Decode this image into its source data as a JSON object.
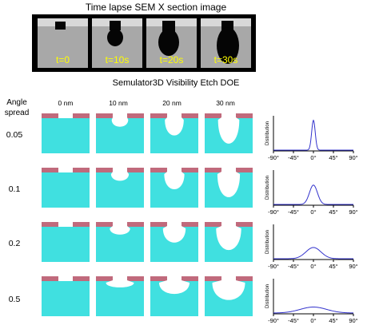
{
  "sem": {
    "title": "Time lapse SEM X section image",
    "panels": [
      {
        "label": "t=0"
      },
      {
        "label": "t=10s"
      },
      {
        "label": "t=20s"
      },
      {
        "label": "t=30s"
      }
    ]
  },
  "sim": {
    "title": "Semulator3D  Visibility Etch DOE",
    "angle_header": [
      "Angle",
      "spread"
    ],
    "columns": [
      "0 nm",
      "10 nm",
      "20 nm",
      "30 nm"
    ],
    "rows": [
      {
        "angle": "0.05",
        "spread": 0.05
      },
      {
        "angle": "0.1",
        "spread": 0.1
      },
      {
        "angle": "0.2",
        "spread": 0.2
      },
      {
        "angle": "0.5",
        "spread": 0.5
      }
    ]
  },
  "distribution": {
    "ylabel": "Distribution",
    "xticks": [
      "-90°",
      "-45°",
      "0°",
      "45°",
      "90°"
    ],
    "xlim": [
      -90,
      90
    ],
    "curves": [
      {
        "sigma_deg": 4,
        "peak": 0.85
      },
      {
        "sigma_deg": 9,
        "peak": 0.55
      },
      {
        "sigma_deg": 17,
        "peak": 0.32
      },
      {
        "sigma_deg": 30,
        "peak": 0.17
      }
    ]
  },
  "colors": {
    "substrate": "#40e0e0",
    "mask": "#c06a7c",
    "curve": "#3333cc",
    "sem_bg": "#a8a8a8",
    "sem_void": "#050505",
    "sem_label": "#ffff00"
  }
}
